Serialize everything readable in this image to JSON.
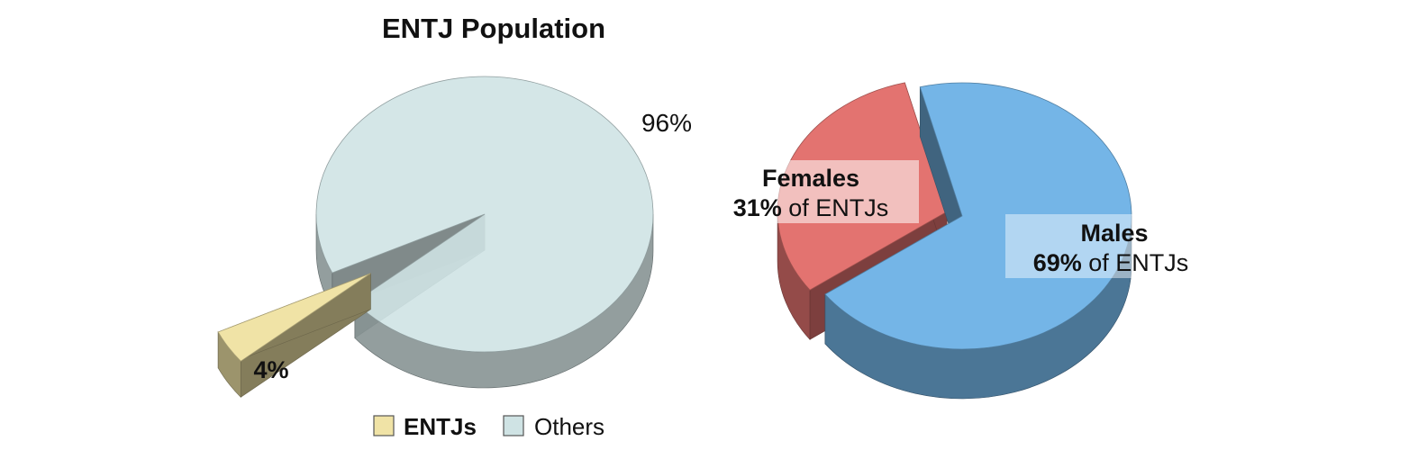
{
  "chart_data": [
    {
      "type": "pie",
      "style": "3d-exploded",
      "title": "ENTJ Population",
      "categories": [
        "ENTJs",
        "Others"
      ],
      "values": [
        4,
        96
      ],
      "data_labels": [
        "4%",
        "96%"
      ],
      "colors": {
        "ENTJs": "#f0e3a6",
        "Others": "#cfe3e4"
      },
      "legend": {
        "position": "bottom",
        "items": [
          "ENTJs",
          "Others"
        ]
      }
    },
    {
      "type": "pie",
      "style": "3d-exploded",
      "title": "",
      "categories": [
        "Females",
        "Males"
      ],
      "values": [
        31,
        69
      ],
      "colors": {
        "Females": "#e37370",
        "Males": "#74b5e7"
      },
      "labels": [
        {
          "name": "Females",
          "percent": "31%",
          "suffix": "of ENTJs"
        },
        {
          "name": "Males",
          "percent": "69%",
          "suffix": "of ENTJs"
        }
      ]
    }
  ]
}
